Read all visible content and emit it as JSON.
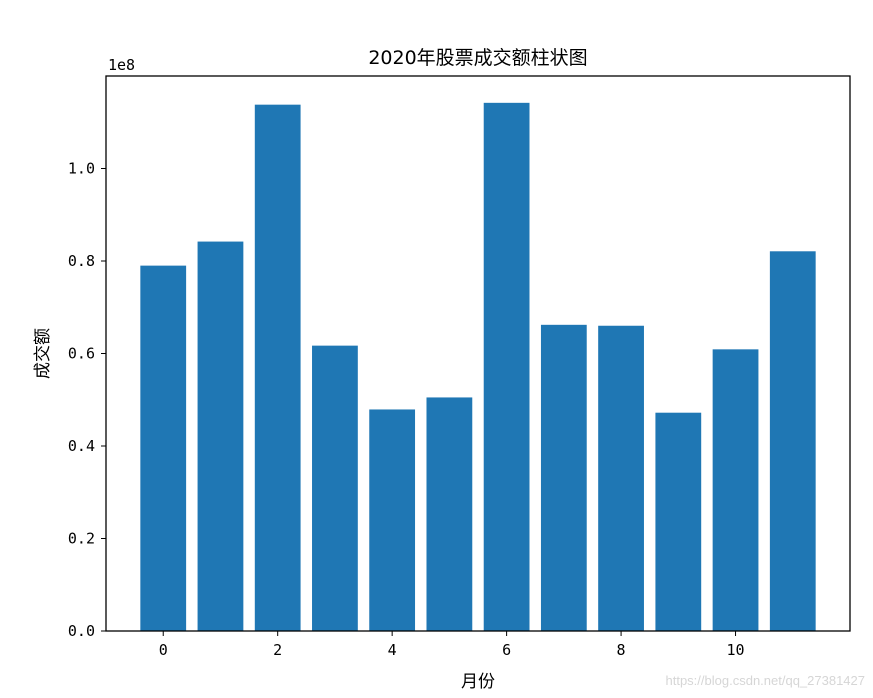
{
  "chart_data": {
    "type": "bar",
    "title": "2020年股票成交额柱状图",
    "xlabel": "月份",
    "ylabel": "成交额",
    "x": [
      0,
      1,
      2,
      3,
      4,
      5,
      6,
      7,
      8,
      9,
      10,
      11
    ],
    "values": [
      79000000,
      84200000,
      113800000,
      61700000,
      47900000,
      50500000,
      114200000,
      66200000,
      66000000,
      47200000,
      60900000,
      82100000
    ],
    "xlim": [
      -1.0,
      12.0
    ],
    "ylim": [
      0,
      120000000
    ],
    "xticks": [
      0,
      2,
      4,
      6,
      8,
      10
    ],
    "xtick_labels": [
      "0",
      "2",
      "4",
      "6",
      "8",
      "10"
    ],
    "yticks": [
      0,
      20000000,
      40000000,
      60000000,
      80000000,
      100000000
    ],
    "ytick_labels": [
      "0.0",
      "0.2",
      "0.4",
      "0.6",
      "0.8",
      "1.0"
    ],
    "offset_label": "1e8",
    "bar_color": "#1f77b4",
    "grid": false,
    "legend": "none"
  },
  "watermark": "https://blog.csdn.net/qq_27381427"
}
